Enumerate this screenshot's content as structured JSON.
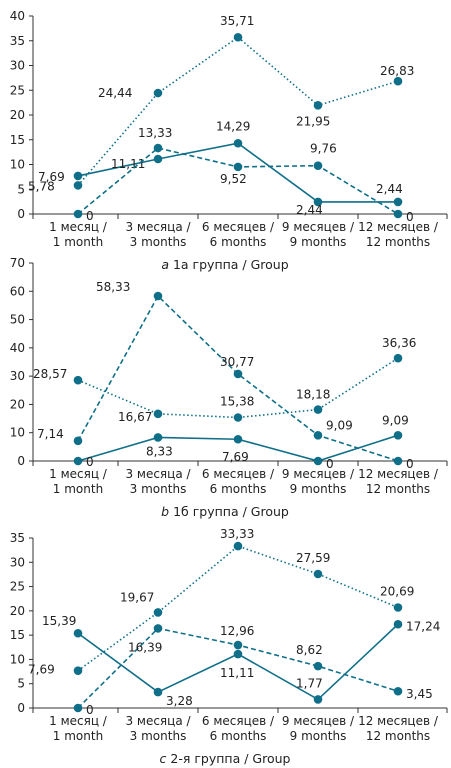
{
  "colors": {
    "series": "#0f6f88",
    "axis": "#333333",
    "grid": "#0f6f88"
  },
  "chart_data": [
    {
      "type": "line",
      "caption_letter": "a",
      "caption": "1a группа / Group",
      "categories": [
        "1 месяц /\n1 month",
        "3 месяца /\n3 months",
        "6 месяцев /\n6 months",
        "9 месяцев /\n9 months",
        "12 месяцев /\n12 months"
      ],
      "ylim": [
        0,
        40
      ],
      "yticks": [
        0,
        5,
        10,
        15,
        20,
        25,
        30,
        35,
        40
      ],
      "series": [
        {
          "style": "solid",
          "values": [
            7.69,
            11.11,
            14.29,
            2.44,
            2.44
          ],
          "labels": [
            "7,69",
            "11,11",
            "14,29",
            "2,44",
            "2,44"
          ]
        },
        {
          "style": "dashed",
          "values": [
            0,
            13.33,
            9.52,
            9.76,
            0
          ],
          "labels": [
            "0",
            "13,33",
            "9,52",
            "9,76",
            "0"
          ]
        },
        {
          "style": "dotted",
          "values": [
            5.78,
            24.44,
            35.71,
            21.95,
            26.83
          ],
          "labels": [
            "5,78",
            "24,44",
            "35,71",
            "21,95",
            "26,83"
          ]
        }
      ]
    },
    {
      "type": "line",
      "caption_letter": "b",
      "caption": "1б группа / Group",
      "categories": [
        "1 месяц /\n1 month",
        "3 месяца /\n3 months",
        "6 месяцев /\n6 months",
        "9 месяцев /\n9 months",
        "12 месяцев /\n12 months"
      ],
      "ylim": [
        0,
        70
      ],
      "yticks": [
        0,
        10,
        20,
        30,
        40,
        50,
        60,
        70
      ],
      "series": [
        {
          "style": "solid",
          "values": [
            0,
            8.33,
            7.69,
            0,
            9.09
          ],
          "labels": [
            "0",
            "8,33",
            "7,69",
            "0",
            "9,09"
          ]
        },
        {
          "style": "dashed",
          "values": [
            7.14,
            58.33,
            30.77,
            9.09,
            0
          ],
          "labels": [
            "7,14",
            "58,33",
            "30,77",
            "9,09",
            "0"
          ]
        },
        {
          "style": "dotted",
          "values": [
            28.57,
            16.67,
            15.38,
            18.18,
            36.36
          ],
          "labels": [
            "28,57",
            "16,67",
            "15,38",
            "18,18",
            "36,36"
          ]
        }
      ]
    },
    {
      "type": "line",
      "caption_letter": "c",
      "caption": "2-я группа / Group",
      "categories": [
        "1 месяц /\n1 month",
        "3 месяца /\n3 months",
        "6 месяцев /\n6 months",
        "9 месяцев /\n9 months",
        "12 месяцев /\n12 months"
      ],
      "ylim": [
        0,
        35
      ],
      "yticks": [
        0,
        5,
        10,
        15,
        20,
        25,
        30,
        35
      ],
      "series": [
        {
          "style": "solid",
          "values": [
            15.39,
            3.28,
            11.11,
            1.77,
            17.24
          ],
          "labels": [
            "15,39",
            "3,28",
            "11,11",
            "1,77",
            "17,24"
          ]
        },
        {
          "style": "dashed",
          "values": [
            0,
            16.39,
            12.96,
            8.62,
            3.45
          ],
          "labels": [
            "0",
            "16,39",
            "12,96",
            "8,62",
            "3,45"
          ]
        },
        {
          "style": "dotted",
          "values": [
            7.69,
            19.67,
            33.33,
            27.59,
            20.69
          ],
          "labels": [
            "7,69",
            "19,67",
            "33,33",
            "27,59",
            "20,69"
          ]
        }
      ]
    }
  ]
}
